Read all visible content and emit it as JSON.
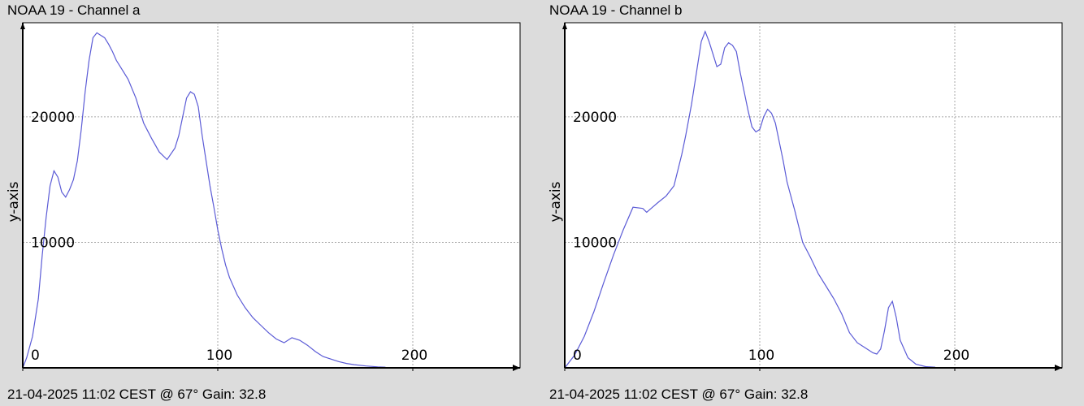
{
  "chart_data": [
    {
      "type": "line",
      "title": "NOAA 19 - Channel a",
      "footer": "21-04-2025 11:02 CEST @ 67° Gain: 32.8",
      "xlabel": "",
      "ylabel": "y-axis",
      "xlim": [
        0,
        255
      ],
      "ylim": [
        0,
        27500
      ],
      "x_ticks": [
        0,
        100,
        200
      ],
      "y_ticks": [
        10000,
        20000
      ],
      "grid": true,
      "line_color": "#5b5bd6",
      "series": [
        {
          "x": [
            0,
            2,
            5,
            8,
            10,
            12,
            14,
            16,
            18,
            20,
            22,
            24,
            26,
            28,
            30,
            32,
            34,
            36,
            38,
            40,
            42,
            44,
            46,
            48,
            50,
            54,
            58,
            62,
            66,
            70,
            74,
            78,
            80,
            82,
            84,
            86,
            88,
            90,
            92,
            94,
            96,
            98,
            100,
            102,
            104,
            106,
            108,
            110,
            114,
            118,
            122,
            126,
            130,
            134,
            138,
            142,
            146,
            150,
            154,
            158,
            162,
            166,
            170,
            176,
            182,
            186
          ],
          "y": [
            0,
            800,
            2500,
            5500,
            9000,
            12000,
            14500,
            15700,
            15200,
            14000,
            13600,
            14200,
            15000,
            16500,
            19000,
            22000,
            24500,
            26300,
            26700,
            26500,
            26300,
            25800,
            25200,
            24500,
            24000,
            23000,
            21500,
            19500,
            18300,
            17200,
            16600,
            17500,
            18500,
            20000,
            21500,
            22000,
            21800,
            20800,
            18500,
            16500,
            14500,
            12800,
            11000,
            9500,
            8200,
            7200,
            6500,
            5800,
            4800,
            4000,
            3400,
            2800,
            2300,
            2000,
            2400,
            2200,
            1800,
            1300,
            900,
            700,
            500,
            350,
            250,
            150,
            80,
            50
          ]
        }
      ]
    },
    {
      "type": "line",
      "title": "NOAA 19 - Channel b",
      "footer": "21-04-2025 11:02 CEST @ 67° Gain: 32.8",
      "xlabel": "",
      "ylabel": "y-axis",
      "xlim": [
        0,
        255
      ],
      "ylim": [
        0,
        27500
      ],
      "x_ticks": [
        0,
        100,
        200
      ],
      "y_ticks": [
        10000,
        20000
      ],
      "grid": true,
      "line_color": "#5b5bd6",
      "series": [
        {
          "x": [
            0,
            5,
            10,
            15,
            20,
            25,
            30,
            35,
            40,
            42,
            45,
            48,
            52,
            56,
            60,
            62,
            65,
            68,
            70,
            72,
            74,
            76,
            78,
            80,
            82,
            84,
            86,
            88,
            90,
            92,
            94,
            96,
            98,
            100,
            102,
            104,
            106,
            108,
            110,
            112,
            114,
            118,
            122,
            126,
            130,
            134,
            138,
            142,
            146,
            150,
            154,
            158,
            160,
            162,
            164,
            166,
            168,
            170,
            172,
            176,
            180,
            185,
            190
          ],
          "y": [
            0,
            1000,
            2500,
            4500,
            6800,
            9000,
            11000,
            12800,
            12700,
            12400,
            12800,
            13200,
            13700,
            14500,
            17000,
            18500,
            21000,
            24000,
            26000,
            26800,
            26000,
            25000,
            24000,
            24200,
            25500,
            25900,
            25700,
            25200,
            23500,
            22000,
            20500,
            19200,
            18800,
            19000,
            20000,
            20600,
            20300,
            19500,
            18000,
            16500,
            14800,
            12500,
            10000,
            8800,
            7500,
            6500,
            5500,
            4300,
            2800,
            2000,
            1600,
            1200,
            1100,
            1500,
            3000,
            4800,
            5300,
            4000,
            2200,
            800,
            300,
            100,
            50
          ]
        }
      ]
    }
  ]
}
